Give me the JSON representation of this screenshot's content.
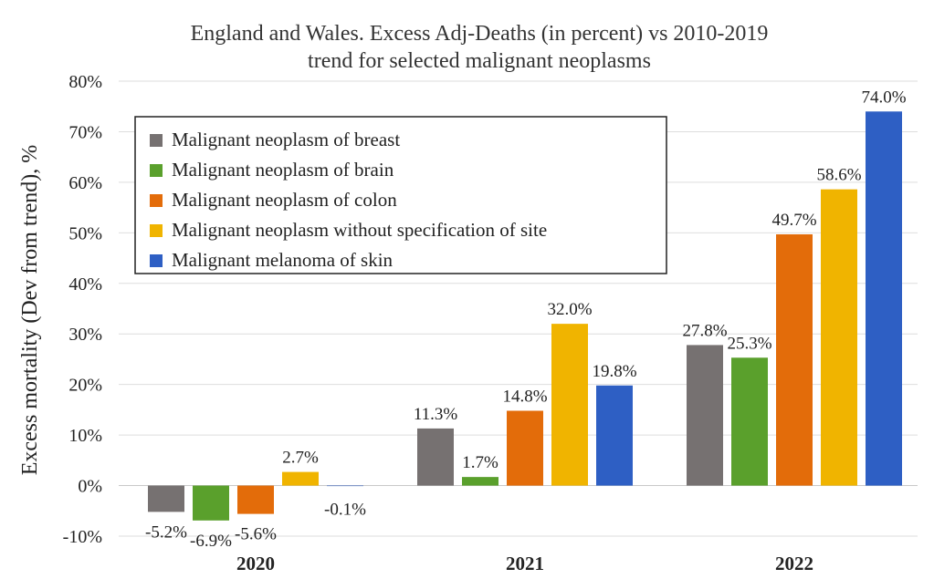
{
  "chart_data": {
    "type": "bar",
    "title_lines": [
      "England and Wales. Excess Adj-Deaths (in percent) vs 2010-2019",
      "trend for selected malignant neoplasms"
    ],
    "xlabel": "",
    "ylabel": "Excess mortality (Dev from trend), %",
    "categories": [
      "2020",
      "2021",
      "2022"
    ],
    "ylim": [
      -10,
      80
    ],
    "yticks": [
      -10,
      0,
      10,
      20,
      30,
      40,
      50,
      60,
      70,
      80
    ],
    "ytick_labels": [
      "-10%",
      "0%",
      "10%",
      "20%",
      "30%",
      "40%",
      "50%",
      "60%",
      "70%",
      "80%"
    ],
    "grid": "horizontal",
    "legend_position": "top-left",
    "series": [
      {
        "name": "Malignant neoplasm of breast",
        "color": "#767171",
        "values": [
          -5.2,
          11.3,
          27.8
        ],
        "labels": [
          "-5.2%",
          "11.3%",
          "27.8%"
        ]
      },
      {
        "name": "Malignant neoplasm of brain",
        "color": "#5aa02c",
        "values": [
          -6.9,
          1.7,
          25.3
        ],
        "labels": [
          "-6.9%",
          "1.7%",
          "25.3%"
        ]
      },
      {
        "name": "Malignant neoplasm of colon",
        "color": "#e36c0a",
        "values": [
          -5.6,
          14.8,
          49.7
        ],
        "labels": [
          "-5.6%",
          "14.8%",
          "49.7%"
        ]
      },
      {
        "name": "Malignant neoplasm without specification of site",
        "color": "#f0b400",
        "values": [
          2.7,
          32.0,
          58.6
        ],
        "labels": [
          "2.7%",
          "32.0%",
          "58.6%"
        ]
      },
      {
        "name": "Malignant melanoma of skin",
        "color": "#2e5fc4",
        "values": [
          -0.1,
          19.8,
          74.0
        ],
        "labels": [
          "-0.1%",
          "19.8%",
          "74.0%"
        ]
      }
    ]
  }
}
